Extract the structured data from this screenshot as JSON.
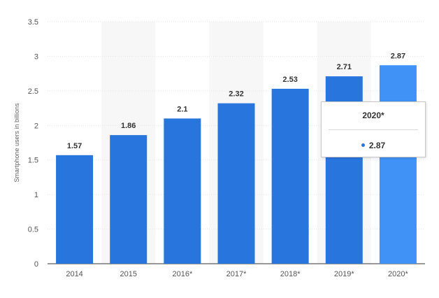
{
  "chart_data": {
    "type": "bar",
    "categories": [
      "2014",
      "2015",
      "2016*",
      "2017*",
      "2018*",
      "2019*",
      "2020*"
    ],
    "values": [
      1.57,
      1.86,
      2.1,
      2.32,
      2.53,
      2.71,
      2.87
    ],
    "value_labels": [
      "1.57",
      "1.86",
      "2.1",
      "2.32",
      "2.53",
      "2.71",
      "2.87"
    ],
    "ylabel": "Smartphone users in billions",
    "ylim": [
      0,
      3.5
    ],
    "yticks": [
      "0",
      "0.5",
      "1",
      "1.5",
      "2",
      "2.5",
      "3",
      "3.5"
    ],
    "grid": true,
    "highlighted_category": "2020*",
    "colors": {
      "bar": "#2876dd",
      "bar_highlight": "#4192f6",
      "stripe": "#f7f7f7",
      "grid": "#e6e6e6"
    }
  },
  "tooltip": {
    "title": "2020*",
    "value": "2.87"
  }
}
